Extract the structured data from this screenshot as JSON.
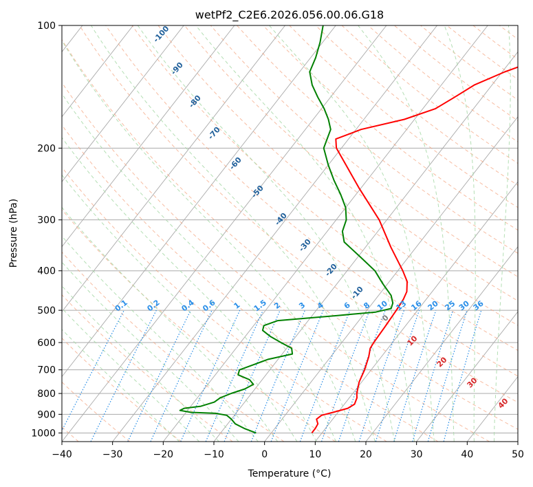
{
  "chart_data": {
    "type": "line",
    "title": "wetPf2_C2E6.2026.056.00.06.G18",
    "xlabel": "Temperature (°C)",
    "ylabel": "Pressure (hPa)",
    "xlim": [
      -40,
      50
    ],
    "ylim": [
      1050,
      100
    ],
    "y_scale": "log",
    "grid": true,
    "x_ticks": [
      -40,
      -30,
      -20,
      -10,
      0,
      10,
      20,
      30,
      40,
      50
    ],
    "y_ticks": [
      100,
      200,
      300,
      400,
      500,
      600,
      700,
      800,
      900,
      1000
    ],
    "series": [
      {
        "color": "#ff0000",
        "points": [
          [
            1000,
            8.0
          ],
          [
            975,
            8.0
          ],
          [
            950,
            7.8
          ],
          [
            925,
            6.8
          ],
          [
            905,
            7.2
          ],
          [
            890,
            9.0
          ],
          [
            870,
            11.3
          ],
          [
            850,
            12.0
          ],
          [
            820,
            11.5
          ],
          [
            800,
            10.8
          ],
          [
            750,
            9.5
          ],
          [
            700,
            8.7
          ],
          [
            650,
            7.5
          ],
          [
            620,
            6.5
          ],
          [
            600,
            6.3
          ],
          [
            550,
            6.1
          ],
          [
            500,
            5.8
          ],
          [
            470,
            5.5
          ],
          [
            450,
            5.0
          ],
          [
            425,
            3.5
          ],
          [
            400,
            1.0
          ],
          [
            350,
            -5.0
          ],
          [
            300,
            -11.5
          ],
          [
            250,
            -20.5
          ],
          [
            220,
            -26.5
          ],
          [
            200,
            -31.0
          ],
          [
            190,
            -32.5
          ],
          [
            180,
            -29.0
          ],
          [
            170,
            -22.0
          ],
          [
            160,
            -17.5
          ],
          [
            150,
            -15.5
          ],
          [
            140,
            -13.5
          ],
          [
            130,
            -9.5
          ],
          [
            120,
            -4.0
          ],
          [
            110,
            2.0
          ],
          [
            100,
            7.5
          ]
        ]
      },
      {
        "color": "#008000",
        "points": [
          [
            1000,
            -3.0
          ],
          [
            975,
            -6.0
          ],
          [
            950,
            -8.5
          ],
          [
            925,
            -10.0
          ],
          [
            905,
            -11.5
          ],
          [
            895,
            -14.0
          ],
          [
            890,
            -19.0
          ],
          [
            880,
            -21.5
          ],
          [
            870,
            -21.0
          ],
          [
            860,
            -18.0
          ],
          [
            840,
            -16.0
          ],
          [
            820,
            -15.5
          ],
          [
            800,
            -14.0
          ],
          [
            780,
            -12.0
          ],
          [
            760,
            -11.0
          ],
          [
            740,
            -12.5
          ],
          [
            720,
            -15.5
          ],
          [
            700,
            -16.0
          ],
          [
            680,
            -14.0
          ],
          [
            660,
            -12.0
          ],
          [
            640,
            -8.0
          ],
          [
            620,
            -9.0
          ],
          [
            600,
            -12.0
          ],
          [
            580,
            -15.0
          ],
          [
            560,
            -17.5
          ],
          [
            545,
            -18.0
          ],
          [
            530,
            -16.0
          ],
          [
            515,
            -5.0
          ],
          [
            505,
            2.0
          ],
          [
            495,
            4.5
          ],
          [
            480,
            4.0
          ],
          [
            460,
            2.5
          ],
          [
            430,
            -1.0
          ],
          [
            400,
            -4.5
          ],
          [
            370,
            -9.5
          ],
          [
            340,
            -15.0
          ],
          [
            320,
            -17.0
          ],
          [
            300,
            -18.0
          ],
          [
            280,
            -20.0
          ],
          [
            260,
            -23.0
          ],
          [
            240,
            -26.5
          ],
          [
            220,
            -30.0
          ],
          [
            200,
            -33.5
          ],
          [
            180,
            -35.0
          ],
          [
            170,
            -37.0
          ],
          [
            160,
            -39.5
          ],
          [
            150,
            -42.5
          ],
          [
            140,
            -45.5
          ],
          [
            130,
            -48.0
          ],
          [
            120,
            -49.0
          ],
          [
            110,
            -50.5
          ],
          [
            100,
            -52.5
          ]
        ]
      }
    ],
    "dry_adiabat_labels": [
      -100,
      -90,
      -80,
      -70,
      -60,
      -50,
      -40,
      -30,
      -20,
      -10
    ],
    "mixing_ratio_labels": [
      "0.1",
      "0.2",
      "0.4",
      "0.6",
      "1",
      "1.5",
      "2",
      "3",
      "4",
      "6",
      "8",
      "10",
      "13",
      "16",
      "20",
      "25",
      "30",
      "36"
    ],
    "moist_adiabat_labels": [
      "0",
      "10",
      "20",
      "30",
      "40"
    ],
    "colors": {
      "temperature": "#ff0000",
      "dewpoint": "#008000",
      "isotherm": "#a9a9a9",
      "dry_adiabat": "#f4a582",
      "moist_adiabat": "#a6d8a6",
      "mixing_ratio": "#1e88e5",
      "dry_adiabat_label": "#1f5f9a",
      "mixing_ratio_label": "#2b8fe8",
      "moist_label": "#d62728",
      "moist_label_zero": "#808080",
      "frame": "#000000"
    }
  }
}
